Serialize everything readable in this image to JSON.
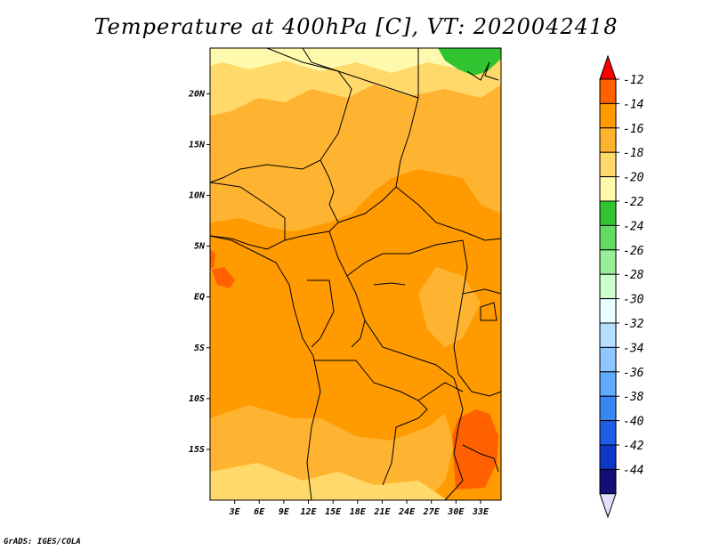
{
  "title": "Temperature at 400hPa [C], VT: 2020042418",
  "credit": "GrADS: IGES/COLA",
  "map": {
    "lon_range": [
      0,
      35.5
    ],
    "lat_range": [
      -20,
      24.5
    ],
    "lon_ticks": [
      {
        "value": 3,
        "label": "3E"
      },
      {
        "value": 6,
        "label": "6E"
      },
      {
        "value": 9,
        "label": "9E"
      },
      {
        "value": 12,
        "label": "12E"
      },
      {
        "value": 15,
        "label": "15E"
      },
      {
        "value": 18,
        "label": "18E"
      },
      {
        "value": 21,
        "label": "21E"
      },
      {
        "value": 24,
        "label": "24E"
      },
      {
        "value": 27,
        "label": "27E"
      },
      {
        "value": 30,
        "label": "30E"
      },
      {
        "value": 33,
        "label": "33E"
      }
    ],
    "lat_ticks": [
      {
        "value": 20,
        "label": "20N"
      },
      {
        "value": 15,
        "label": "15N"
      },
      {
        "value": 10,
        "label": "10N"
      },
      {
        "value": 5,
        "label": "5N"
      },
      {
        "value": 0,
        "label": "EQ"
      },
      {
        "value": -5,
        "label": "5S"
      },
      {
        "value": -10,
        "label": "10S"
      },
      {
        "value": -15,
        "label": "15S"
      }
    ]
  },
  "colorbar": {
    "labels": [
      "-12",
      "-14",
      "-16",
      "-18",
      "-20",
      "-22",
      "-24",
      "-26",
      "-28",
      "-30",
      "-32",
      "-34",
      "-36",
      "-38",
      "-40",
      "-42",
      "-44"
    ],
    "colors": [
      "#ff0000",
      "#ff6000",
      "#ff9a00",
      "#ffb431",
      "#ffd96a",
      "#fff9ad",
      "#31c431",
      "#63da63",
      "#99ee99",
      "#cdffcd",
      "#e8ffff",
      "#b6e0ff",
      "#8fc6ff",
      "#62aaff",
      "#3786f2",
      "#1e5ee6",
      "#0e36c8",
      "#140e78",
      "#e0e0ff"
    ]
  },
  "regions": [
    {
      "name": "warm-pocket-gulf-of-guinea",
      "level": "-14"
    },
    {
      "name": "warm-pocket-southeast",
      "level": "-14"
    },
    {
      "name": "cold-patch-northeast",
      "level": "-24"
    }
  ]
}
